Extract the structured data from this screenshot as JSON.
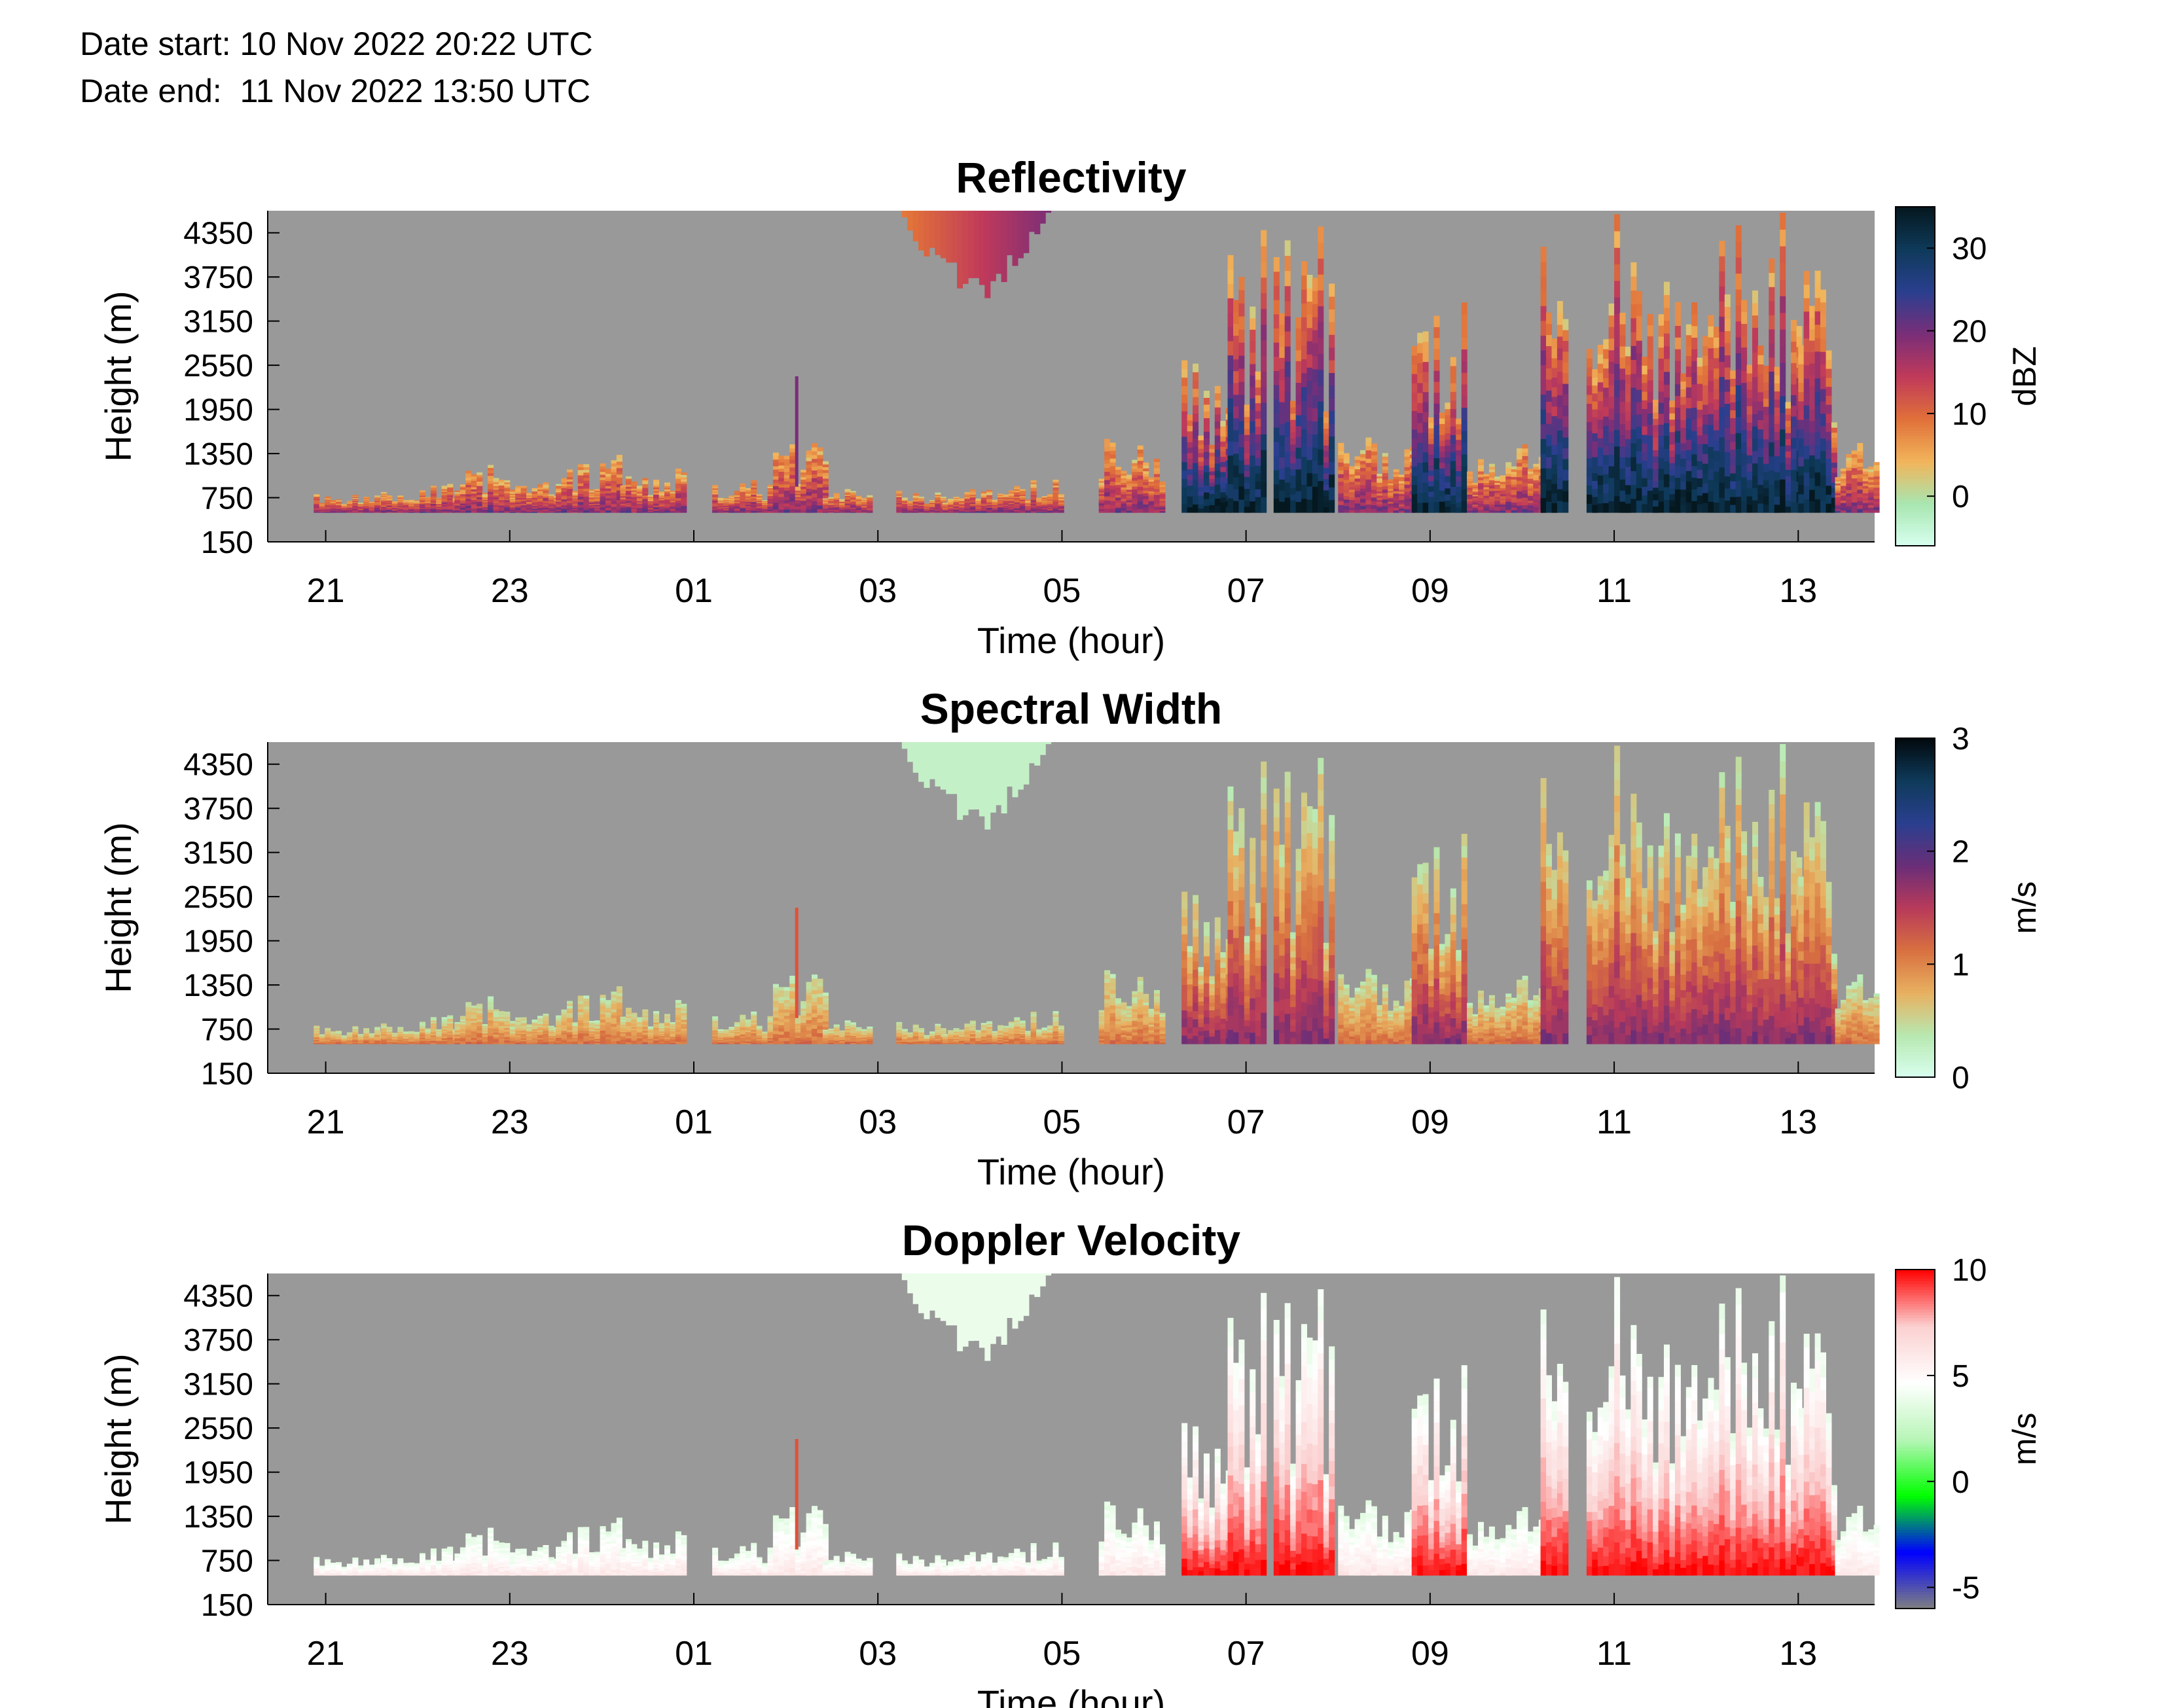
{
  "header": {
    "date_start": "Date start: 10 Nov 2022 20:22 UTC",
    "date_end": "Date end:  11 Nov 2022 13:50 UTC"
  },
  "colors": {
    "no_data": "#999999",
    "axis": "#000000",
    "reflectivity_scale": [
      "#d8fff0",
      "#a8e6b0",
      "#f2b45a",
      "#e0703a",
      "#c03a5a",
      "#7a2e78",
      "#2a3f8f",
      "#0e3a5a",
      "#05181f"
    ],
    "width_scale": [
      "#d8fff0",
      "#b8e8b0",
      "#e8b060",
      "#d87040",
      "#b83a5a",
      "#6a2e78",
      "#2a3f8f",
      "#0e3a5a",
      "#02090d"
    ],
    "velocity_scale": [
      "#808080",
      "#0000ff",
      "#00ff00",
      "#b8f5b8",
      "#ffffff",
      "#fbd0d0",
      "#ff0000"
    ]
  },
  "chart_data": [
    {
      "type": "heatmap",
      "title": "Reflectivity",
      "xlabel": "Time (hour)",
      "ylabel": "Height (m)",
      "x_ticks": [
        "21",
        "23",
        "01",
        "03",
        "05",
        "07",
        "09",
        "11",
        "13"
      ],
      "x_tick_hours": [
        21,
        23,
        25,
        27,
        29,
        31,
        33,
        35,
        37
      ],
      "x_range_hours": [
        20.37,
        37.83
      ],
      "y_ticks": [
        "150",
        "750",
        "1350",
        "1950",
        "2550",
        "3150",
        "3750",
        "4350"
      ],
      "y_tick_values": [
        150,
        750,
        1350,
        1950,
        2550,
        3150,
        3750,
        4350
      ],
      "ylim": [
        150,
        4650
      ],
      "colorbar_label": "dBZ",
      "colorbar_ticks": [
        "0",
        "10",
        "20",
        "30"
      ],
      "colorbar_tick_values": [
        0,
        10,
        20,
        30
      ],
      "clim": [
        -6,
        35
      ],
      "max_value": 35,
      "min_value": -5
    },
    {
      "type": "heatmap",
      "title": "Spectral Width",
      "xlabel": "Time (hour)",
      "ylabel": "Height (m)",
      "x_ticks": [
        "21",
        "23",
        "01",
        "03",
        "05",
        "07",
        "09",
        "11",
        "13"
      ],
      "x_tick_hours": [
        21,
        23,
        25,
        27,
        29,
        31,
        33,
        35,
        37
      ],
      "x_range_hours": [
        20.37,
        37.83
      ],
      "y_ticks": [
        "150",
        "750",
        "1350",
        "1950",
        "2550",
        "3150",
        "3750",
        "4350"
      ],
      "y_tick_values": [
        150,
        750,
        1350,
        1950,
        2550,
        3150,
        3750,
        4350
      ],
      "ylim": [
        150,
        4650
      ],
      "colorbar_label": "m/s",
      "colorbar_ticks": [
        "0",
        "1",
        "2",
        "3"
      ],
      "colorbar_tick_values": [
        0,
        1,
        2,
        3
      ],
      "clim": [
        0,
        3
      ],
      "max_value": 1.9,
      "min_value": 0.05
    },
    {
      "type": "heatmap",
      "title": "Doppler Velocity",
      "xlabel": "Time (hour)",
      "ylabel": "Height (m)",
      "x_ticks": [
        "21",
        "23",
        "01",
        "03",
        "05",
        "07",
        "09",
        "11",
        "13"
      ],
      "x_tick_hours": [
        21,
        23,
        25,
        27,
        29,
        31,
        33,
        35,
        37
      ],
      "x_range_hours": [
        20.37,
        37.83
      ],
      "y_ticks": [
        "150",
        "750",
        "1350",
        "1950",
        "2550",
        "3150",
        "3750",
        "4350"
      ],
      "y_tick_values": [
        150,
        750,
        1350,
        1950,
        2550,
        3150,
        3750,
        4350
      ],
      "ylim": [
        150,
        4650
      ],
      "colorbar_label": "m/s",
      "colorbar_ticks": [
        "10",
        "5",
        "0",
        "-5"
      ],
      "colorbar_tick_values": [
        10,
        5,
        0,
        -5
      ],
      "clim": [
        -6,
        10
      ],
      "max_value": 8,
      "min_value": 0.5
    }
  ],
  "echo_field": {
    "description_hours": "cloud/precip columns; start/end hour, top height (m)",
    "columns": [
      {
        "t0": 20.87,
        "t1": 21.6,
        "top": 800
      },
      {
        "t0": 21.6,
        "t1": 22.4,
        "top": 950
      },
      {
        "t0": 22.4,
        "t1": 23.0,
        "top": 1200
      },
      {
        "t0": 23.0,
        "t1": 23.5,
        "top": 1000
      },
      {
        "t0": 23.5,
        "t1": 24.2,
        "top": 1350
      },
      {
        "t0": 24.2,
        "t1": 24.9,
        "top": 1200
      },
      {
        "t0": 25.2,
        "t1": 25.8,
        "top": 1000
      },
      {
        "t0": 25.8,
        "t1": 26.4,
        "top": 1500
      },
      {
        "t0": 26.4,
        "t1": 26.9,
        "top": 900
      },
      {
        "t0": 27.2,
        "t1": 27.7,
        "top": 850
      },
      {
        "t0": 27.7,
        "t1": 28.3,
        "top": 900
      },
      {
        "t0": 28.3,
        "t1": 29.0,
        "top": 1000
      },
      {
        "t0": 29.4,
        "t1": 30.1,
        "top": 1550
      },
      {
        "t0": 30.3,
        "t1": 30.8,
        "top": 2800
      },
      {
        "t0": 30.8,
        "t1": 31.2,
        "top": 4450
      },
      {
        "t0": 31.3,
        "t1": 31.9,
        "top": 4450
      },
      {
        "t0": 32.0,
        "t1": 32.8,
        "top": 1600
      },
      {
        "t0": 32.8,
        "t1": 33.4,
        "top": 3800
      },
      {
        "t0": 33.4,
        "t1": 34.2,
        "top": 1500
      },
      {
        "t0": 34.2,
        "t1": 34.5,
        "top": 4450
      },
      {
        "t0": 34.7,
        "t1": 37.0,
        "top": 4650
      },
      {
        "t0": 37.0,
        "t1": 37.4,
        "top": 4000
      },
      {
        "t0": 37.4,
        "t1": 37.83,
        "top": 1500
      }
    ],
    "upper_cloud": {
      "t0": 27.2,
      "t1": 29.0,
      "base": 3400,
      "top": 4650
    },
    "thin_plume": {
      "t": 26.1,
      "base": 900,
      "top": 2400
    }
  }
}
